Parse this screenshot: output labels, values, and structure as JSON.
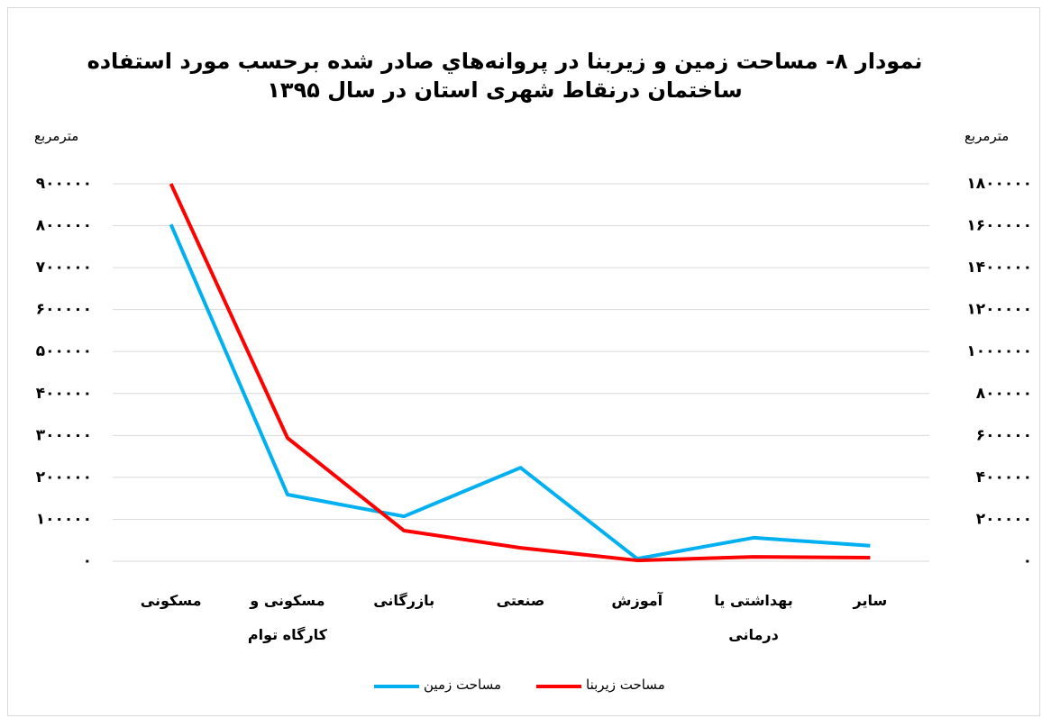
{
  "chart_data": {
    "type": "line",
    "title": "نمودار ۸- مساحت زمین و زیربنا در پروانه‌هاي صادر شده برحسب مورد استفاده ساختمان درنقاط شهری استان در سال ۱۳۹۵",
    "y_label": "مترمربع",
    "y2_label": "مترمربع",
    "categories": [
      "مسکونی",
      "مسکونی و کارگاه توام",
      "بازرگانی",
      "صنعتی",
      "آموزش",
      "بهداشتی یا درمانی",
      "سایر"
    ],
    "series": [
      {
        "name": "مساحت زمین",
        "color": "#00b0f0",
        "values": [
          803000,
          159000,
          107000,
          223000,
          6000,
          56000,
          37000
        ]
      },
      {
        "name": "مساحت زیربنا",
        "color": "#ff0000",
        "axis": "y2",
        "values": [
          1800000,
          588000,
          146000,
          64000,
          4000,
          21000,
          17000
        ]
      }
    ],
    "ylim": [
      0,
      900000
    ],
    "yticks": [
      {
        "value": 0,
        "label": "۰"
      },
      {
        "value": 100000,
        "label": "۱۰۰۰۰۰"
      },
      {
        "value": 200000,
        "label": "۲۰۰۰۰۰"
      },
      {
        "value": 300000,
        "label": "۳۰۰۰۰۰"
      },
      {
        "value": 400000,
        "label": "۴۰۰۰۰۰"
      },
      {
        "value": 500000,
        "label": "۵۰۰۰۰۰"
      },
      {
        "value": 600000,
        "label": "۶۰۰۰۰۰"
      },
      {
        "value": 700000,
        "label": "۷۰۰۰۰۰"
      },
      {
        "value": 800000,
        "label": "۸۰۰۰۰۰"
      },
      {
        "value": 900000,
        "label": "۹۰۰۰۰۰"
      }
    ],
    "y2lim": [
      0,
      1800000
    ],
    "y2ticks": [
      {
        "value": 0,
        "label": "۰"
      },
      {
        "value": 200000,
        "label": "۲۰۰۰۰۰"
      },
      {
        "value": 400000,
        "label": "۴۰۰۰۰۰"
      },
      {
        "value": 600000,
        "label": "۶۰۰۰۰۰"
      },
      {
        "value": 800000,
        "label": "۸۰۰۰۰۰"
      },
      {
        "value": 1000000,
        "label": "۱۰۰۰۰۰۰"
      },
      {
        "value": 1200000,
        "label": "۱۲۰۰۰۰۰"
      },
      {
        "value": 1400000,
        "label": "۱۴۰۰۰۰۰"
      },
      {
        "value": 1600000,
        "label": "۱۶۰۰۰۰۰"
      },
      {
        "value": 1800000,
        "label": "۱۸۰۰۰۰۰"
      }
    ],
    "grid": true,
    "legend": "bottom"
  }
}
